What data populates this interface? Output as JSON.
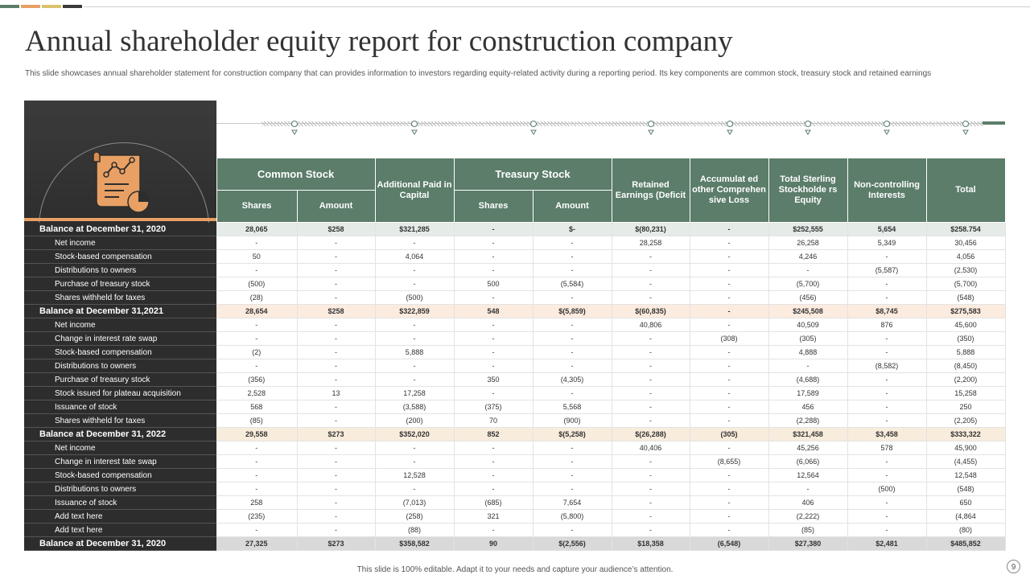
{
  "colors": {
    "accent_green": "#5b7d6a",
    "accent_orange": "#e8a064",
    "accent_yellow": "#d9c36c",
    "accent_dark": "#3a3a3a",
    "panel_dark": "#2d2d2d"
  },
  "slide": {
    "title": "Annual shareholder equity report for construction company",
    "subtitle": "This slide showcases annual shareholder statement for construction company that can provides information to investors regarding equity-related activity during a reporting period. Its key components are common stock, treasury stock and retained earnings",
    "footer": "This slide is 100% editable. Adapt it to your needs and capture your audience’s attention.",
    "page_number": "9"
  },
  "left_panel": {
    "icon": "document-chart-icon"
  },
  "table": {
    "headers": {
      "common_stock": "Common Stock",
      "additional_paid": "Additional Paid in Capital",
      "treasury_stock": "Treasury Stock",
      "retained": "Retained Earnings (Deficit",
      "accumulated": "Accumulat ed other Comprehen sive Loss",
      "total_sterling": "Total Sterling Stockholde rs Equity",
      "non_controlling": "Non-controlling Interests",
      "total": "Total",
      "shares": "Shares",
      "amount": "Amount",
      "t_shares": "Shares",
      "t_amount": "Amount"
    },
    "rows": [
      {
        "label": "Balance at December 31, 2020",
        "cells": [
          "28,065",
          "$258",
          "$321,285",
          "-",
          "$-",
          "$(80,231)",
          "-",
          "$252,555",
          "5,654",
          "$258.754"
        ]
      },
      {
        "label": "Net income",
        "cells": [
          "-",
          "-",
          "-",
          "-",
          "-",
          "28,258",
          "-",
          "26,258",
          "5,349",
          "30,456"
        ]
      },
      {
        "label": "Stock-based compensation",
        "cells": [
          "50",
          "-",
          "4,064",
          "-",
          "-",
          "-",
          "-",
          "4,246",
          "-",
          "4,056"
        ]
      },
      {
        "label": "Distributions to owners",
        "cells": [
          "-",
          "-",
          "-",
          "-",
          "-",
          "-",
          "-",
          "-",
          "(5,587)",
          "(2,530)"
        ]
      },
      {
        "label": "Purchase of treasury stock",
        "cells": [
          "(500)",
          "-",
          "-",
          "500",
          "(5,584)",
          "-",
          "-",
          "(5,700)",
          "-",
          "(5,700)"
        ]
      },
      {
        "label": "Shares withheld for taxes",
        "cells": [
          "(28)",
          "-",
          "(500)",
          "-",
          "-",
          "-",
          "-",
          "(456)",
          "-",
          "(548)"
        ]
      },
      {
        "label": "Balance at December 31,2021",
        "cells": [
          "28,654",
          "$258",
          "$322,859",
          "548",
          "$(5,859)",
          "$(60,835)",
          "-",
          "$245,508",
          "$8,745",
          "$275,583"
        ]
      },
      {
        "label": "Net income",
        "cells": [
          "-",
          "-",
          "-",
          "-",
          "-",
          "40,806",
          "-",
          "40,509",
          "876",
          "45,600"
        ]
      },
      {
        "label": "Change in interest rate swap",
        "cells": [
          "-",
          "-",
          "-",
          "-",
          "-",
          "-",
          "(308)",
          "(305)",
          "-",
          "(350)"
        ]
      },
      {
        "label": "Stock-based compensation",
        "cells": [
          "(2)",
          "-",
          "5,888",
          "-",
          "-",
          "-",
          "-",
          "4,888",
          "-",
          "5,888"
        ]
      },
      {
        "label": "Distributions to owners",
        "cells": [
          "-",
          "-",
          "-",
          "-",
          "-",
          "-",
          "-",
          "-",
          "(8,582)",
          "(8,450)"
        ]
      },
      {
        "label": "Purchase of treasury stock",
        "cells": [
          "(356)",
          "-",
          "-",
          "350",
          "(4,305)",
          "-",
          "-",
          "(4,688)",
          "-",
          "(2,200)"
        ]
      },
      {
        "label": "Stock issued for plateau acquisition",
        "cells": [
          "2,528",
          "13",
          "17,258",
          "-",
          "-",
          "-",
          "-",
          "17,589",
          "-",
          "15,258"
        ]
      },
      {
        "label": "Issuance of stock",
        "cells": [
          "568",
          "-",
          "(3,588)",
          "(375)",
          "5,568",
          "-",
          "-",
          "456",
          "-",
          "250"
        ]
      },
      {
        "label": "Shares withheld for taxes",
        "cells": [
          "(85)",
          "-",
          "(200)",
          "70",
          "(900)",
          "-",
          "-",
          "(2,288)",
          "-",
          "(2,205)"
        ]
      },
      {
        "label": "Balance at December 31, 2022",
        "cells": [
          "29,558",
          "$273",
          "$352,020",
          "852",
          "$(5,258)",
          "$(26,288)",
          "(305)",
          "$321,458",
          "$3,458",
          "$333,322"
        ]
      },
      {
        "label": "Net income",
        "cells": [
          "-",
          "-",
          "-",
          "-",
          "-",
          "40,406",
          "-",
          "45,256",
          "578",
          "45,900"
        ]
      },
      {
        "label": "Change in interest tate swap",
        "cells": [
          "-",
          "-",
          "-",
          "-",
          "-",
          "-",
          "(8,655)",
          "(6,066)",
          "-",
          "(4,455)"
        ]
      },
      {
        "label": "Stock-based compensation",
        "cells": [
          "-",
          "-",
          "12,528",
          "-",
          "-",
          "-",
          "-",
          "12,564",
          "-",
          "12,548"
        ]
      },
      {
        "label": "Distributions to owners",
        "cells": [
          "-",
          "-",
          "-",
          "-",
          "-",
          "-",
          "-",
          "-",
          "(500)",
          "(548)"
        ]
      },
      {
        "label": "Issuance of stock",
        "cells": [
          "258",
          "-",
          "(7,013)",
          "(685)",
          "7,654",
          "-",
          "-",
          "406",
          "-",
          "650"
        ]
      },
      {
        "label": "Add text here",
        "cells": [
          "(235)",
          "-",
          "(258)",
          "321",
          "(5,800)",
          "-",
          "-",
          "(2,222)",
          "-",
          "(4,864"
        ]
      },
      {
        "label": "Add text here",
        "cells": [
          "-",
          "-",
          "(88)",
          "-",
          "-",
          "-",
          "-",
          "(85)",
          "-",
          "(80)"
        ]
      },
      {
        "label": "Balance at December 31, 2020",
        "cells": [
          "27,325",
          "$273",
          "$358,582",
          "90",
          "$(2,556)",
          "$18,358",
          "(6,548)",
          "$27,380",
          "$2,481",
          "$485,852"
        ]
      }
    ]
  }
}
